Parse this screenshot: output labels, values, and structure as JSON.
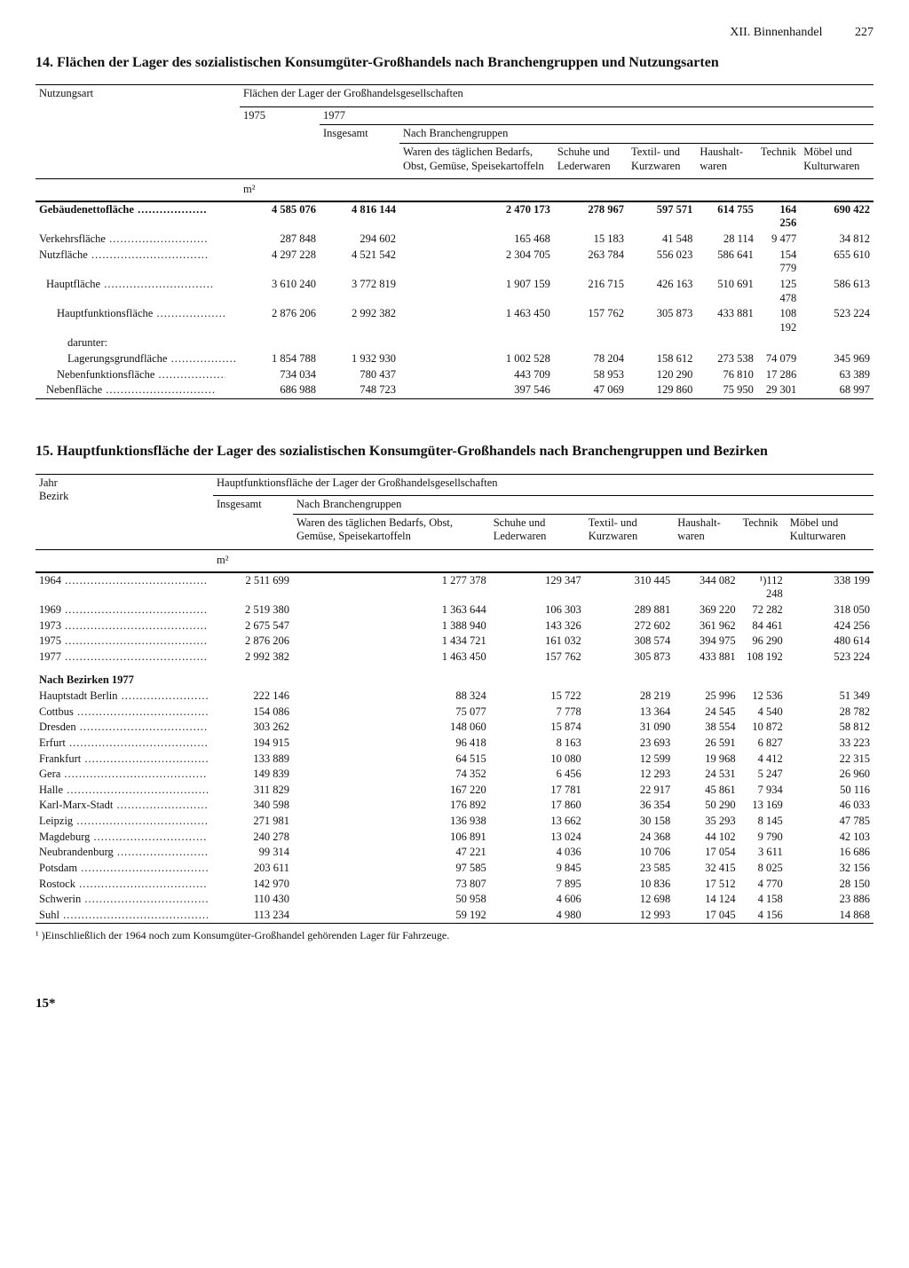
{
  "header": {
    "chapter": "XII. Binnenhandel",
    "page": "227"
  },
  "t14": {
    "title": "14. Flächen der Lager des sozialistischen Konsumgüter-Großhandels nach Branchengruppen und Nutzungsarten",
    "stub_head": "Nutzungsart",
    "span_head": "Flächen der Lager der Großhandelsgesellschaften",
    "years": [
      "1975",
      "1977"
    ],
    "sub_head": "Nach Branchengruppen",
    "insg": "Insgesamt",
    "branches": [
      "Waren des täglichen Bedarfs, Obst, Gemüse, Speise­kartoffeln",
      "Schuhe und Leder­waren",
      "Textil- und Kurz­waren",
      "Haushalt­waren",
      "Technik",
      "Möbel und Kultur­waren"
    ],
    "unit": "m²",
    "rows": [
      {
        "label": "Gebäudenettofläche",
        "bold": true,
        "v": [
          "4 585 076",
          "4 816 144",
          "2 470 173",
          "278 967",
          "597 571",
          "614 755",
          "164 256",
          "690 422"
        ]
      },
      {
        "label": "Verkehrsfläche",
        "v": [
          "287 848",
          "294 602",
          "165 468",
          "15 183",
          "41 548",
          "28 114",
          "9 477",
          "34 812"
        ]
      },
      {
        "label": "Nutzfläche",
        "v": [
          "4 297 228",
          "4 521 542",
          "2 304 705",
          "263 784",
          "556 023",
          "586 641",
          "154 779",
          "655 610"
        ]
      },
      {
        "label": "Hauptfläche",
        "indent": 1,
        "v": [
          "3 610 240",
          "3 772 819",
          "1 907 159",
          "216 715",
          "426 163",
          "510 691",
          "125 478",
          "586 613"
        ]
      },
      {
        "label": "Hauptfunktionsfläche",
        "indent": 2,
        "v": [
          "2 876 206",
          "2 992 382",
          "1 463 450",
          "157 762",
          "305 873",
          "433 881",
          "108 192",
          "523 224"
        ]
      },
      {
        "label": "darunter:",
        "indent": 3,
        "plain": true,
        "v": [
          "",
          "",
          "",
          "",
          "",
          "",
          "",
          ""
        ]
      },
      {
        "label": "Lagerungsgrundfläche",
        "indent": 3,
        "v": [
          "1 854 788",
          "1 932 930",
          "1 002 528",
          "78 204",
          "158 612",
          "273 538",
          "74 079",
          "345 969"
        ]
      },
      {
        "label": "Nebenfunktionsfläche",
        "indent": 2,
        "v": [
          "734 034",
          "780 437",
          "443 709",
          "58 953",
          "120 290",
          "76 810",
          "17 286",
          "63 389"
        ]
      },
      {
        "label": "Nebenfläche",
        "indent": 1,
        "v": [
          "686 988",
          "748 723",
          "397 546",
          "47 069",
          "129 860",
          "75 950",
          "29 301",
          "68 997"
        ]
      }
    ]
  },
  "t15": {
    "title": "15. Hauptfunktionsfläche der Lager des sozialistischen Konsumgüter-Großhandels nach Branchengruppen und Bezirken",
    "stub_head": "Jahr\nBezirk",
    "span_head": "Hauptfunktionsfläche der Lager der Großhandelsgesellschaften",
    "insg": "Insgesamt",
    "sub_head": "Nach Branchengruppen",
    "branches": [
      "Waren des täglichen Bedarfs, Obst, Gemüse, Speise­kartoffeln",
      "Schuhe und Lederwaren",
      "Textil- und Kurzwaren",
      "Haushalt­waren",
      "Technik",
      "Möbel und Kultur­waren"
    ],
    "unit": "m²",
    "years": [
      {
        "label": "1964",
        "v": [
          "2 511 699",
          "1 277 378",
          "129 347",
          "310 445",
          "344 082",
          "¹)112 248",
          "338 199"
        ]
      },
      {
        "label": "1969",
        "v": [
          "2 519 380",
          "1 363 644",
          "106 303",
          "289 881",
          "369 220",
          "72 282",
          "318 050"
        ]
      },
      {
        "label": "1973",
        "v": [
          "2 675 547",
          "1 388 940",
          "143 326",
          "272 602",
          "361 962",
          "84 461",
          "424 256"
        ]
      },
      {
        "label": "1975",
        "v": [
          "2 876 206",
          "1 434 721",
          "161 032",
          "308 574",
          "394 975",
          "96 290",
          "480 614"
        ]
      },
      {
        "label": "1977",
        "v": [
          "2 992 382",
          "1 463 450",
          "157 762",
          "305 873",
          "433 881",
          "108 192",
          "523 224"
        ]
      }
    ],
    "subhead_rows": "Nach Bezirken 1977",
    "districts": [
      {
        "label": "Hauptstadt Berlin",
        "v": [
          "222 146",
          "88 324",
          "15 722",
          "28 219",
          "25 996",
          "12 536",
          "51 349"
        ]
      },
      {
        "label": "Cottbus",
        "v": [
          "154 086",
          "75 077",
          "7 778",
          "13 364",
          "24 545",
          "4 540",
          "28 782"
        ]
      },
      {
        "label": "Dresden",
        "v": [
          "303 262",
          "148 060",
          "15 874",
          "31 090",
          "38 554",
          "10 872",
          "58 812"
        ]
      },
      {
        "label": "Erfurt",
        "v": [
          "194 915",
          "96 418",
          "8 163",
          "23 693",
          "26 591",
          "6 827",
          "33 223"
        ]
      },
      {
        "label": "Frankfurt",
        "v": [
          "133 889",
          "64 515",
          "10 080",
          "12 599",
          "19 968",
          "4 412",
          "22 315"
        ]
      },
      {
        "label": "Gera",
        "v": [
          "149 839",
          "74 352",
          "6 456",
          "12 293",
          "24 531",
          "5 247",
          "26 960"
        ]
      },
      {
        "label": "Halle",
        "v": [
          "311 829",
          "167 220",
          "17 781",
          "22 917",
          "45 861",
          "7 934",
          "50 116"
        ]
      },
      {
        "label": "Karl-Marx-Stadt",
        "v": [
          "340 598",
          "176 892",
          "17 860",
          "36 354",
          "50 290",
          "13 169",
          "46 033"
        ]
      },
      {
        "label": "Leipzig",
        "v": [
          "271 981",
          "136 938",
          "13 662",
          "30 158",
          "35 293",
          "8 145",
          "47 785"
        ]
      },
      {
        "label": "Magdeburg",
        "v": [
          "240 278",
          "106 891",
          "13 024",
          "24 368",
          "44 102",
          "9 790",
          "42 103"
        ]
      },
      {
        "label": "Neubrandenburg",
        "v": [
          "99 314",
          "47 221",
          "4 036",
          "10 706",
          "17 054",
          "3 611",
          "16 686"
        ]
      },
      {
        "label": "Potsdam",
        "v": [
          "203 611",
          "97 585",
          "9 845",
          "23 585",
          "32 415",
          "8 025",
          "32 156"
        ]
      },
      {
        "label": "Rostock",
        "v": [
          "142 970",
          "73 807",
          "7 895",
          "10 836",
          "17 512",
          "4 770",
          "28 150"
        ]
      },
      {
        "label": "Schwerin",
        "v": [
          "110 430",
          "50 958",
          "4 606",
          "12 698",
          "14 124",
          "4 158",
          "23 886"
        ]
      },
      {
        "label": "Suhl",
        "v": [
          "113 234",
          "59 192",
          "4 980",
          "12 993",
          "17 045",
          "4 156",
          "14 868"
        ]
      }
    ],
    "footnote": "¹ )Einschließlich der 1964 noch zum Konsumgüter-Großhandel gehörenden Lager für Fahrzeuge."
  },
  "signature": "15*"
}
